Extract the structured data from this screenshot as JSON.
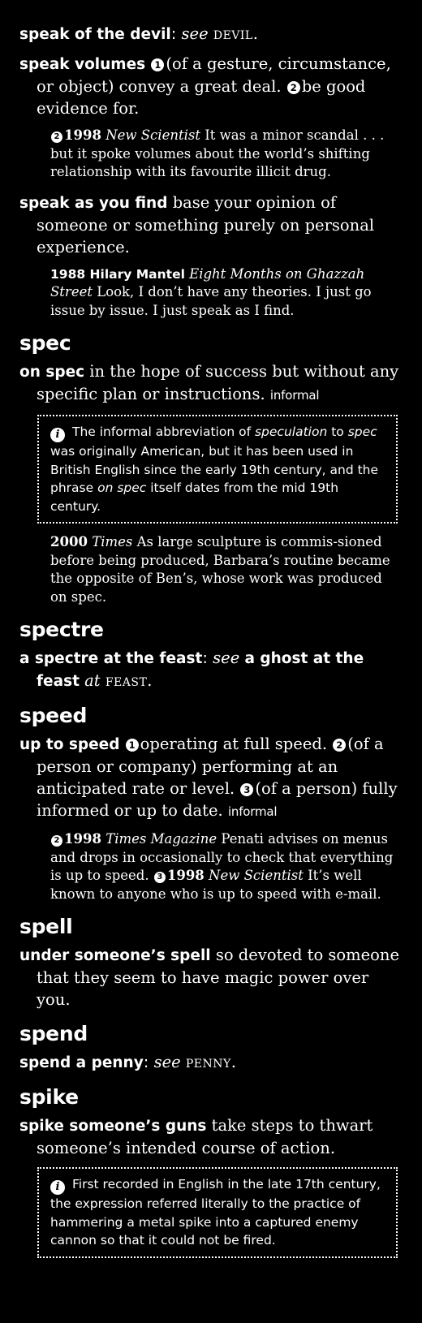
{
  "entries": {
    "devil": {
      "phrase": "speak of the devil",
      "colon": ":",
      "see": "see",
      "ref": "devil"
    },
    "volumes": {
      "phrase": "speak volumes",
      "n1": "1",
      "def1": "(of a gesture, circumstance, or object) convey a great deal.",
      "n2": "2",
      "def2": "be good evidence for.",
      "q_num": "2",
      "q_year": "1998",
      "q_src": "New Scientist",
      "q_text": "It was a minor scandal . . . but it spoke volumes about the world’s shifting relationship with its favourite illicit drug."
    },
    "find": {
      "phrase": "speak as you find",
      "def": "base your opinion of someone or something purely on personal experience.",
      "q_author": "1988 Hilary Mantel",
      "q_src": "Eight Months on Ghazzah Street",
      "q_text": "Look, I don’t have any theories. I just go issue by issue. I just speak as I find."
    },
    "spec": {
      "headword": "spec",
      "phrase": "on spec",
      "def": "in the hope of success but without any specific plan or instructions.",
      "register": "informal",
      "note_a": "The informal abbreviation of",
      "note_b": "speculation",
      "note_c": "to",
      "note_d": "spec",
      "note_e": "was originally American, but it has been used in British English since the early 19th century, and the phrase",
      "note_f": "on spec",
      "note_g": "itself dates from the mid 19th century.",
      "q_year": "2000",
      "q_src": "Times",
      "q_text": "As large sculpture is commis-sioned before being produced, Barbara’s routine became the opposite of Ben’s, whose work was produced on spec."
    },
    "spectre": {
      "headword": "spectre",
      "phrase": "a spectre at the feast",
      "colon": ":",
      "see": "see",
      "ref_phrase": "a ghost at the feast",
      "at": "at",
      "ref": "feast"
    },
    "speed": {
      "headword": "speed",
      "phrase": "up to speed",
      "n1": "1",
      "def1": "operating at full speed.",
      "n2": "2",
      "def2": "(of a person or company) performing at an anticipated rate or level.",
      "n3": "3",
      "def3": "(of a person) fully informed or up to date.",
      "register": "informal",
      "q1_num": "2",
      "q1_year": "1998",
      "q1_src": "Times Magazine",
      "q1_text": "Penati advises on menus and drops in occasionally to check that everything is up to speed.",
      "q2_num": "3",
      "q2_year": "1998",
      "q2_src": "New Scientist",
      "q2_text": "It’s well known to anyone who is up to speed with e-mail."
    },
    "spell": {
      "headword": "spell",
      "phrase": "under someone’s spell",
      "def": "so devoted to someone that they seem to have magic power over you."
    },
    "spend": {
      "headword": "spend",
      "phrase": "spend a penny",
      "colon": ":",
      "see": "see",
      "ref": "penny"
    },
    "spike": {
      "headword": "spike",
      "phrase": "spike someone’s guns",
      "def": "take steps to thwart someone’s intended course of action.",
      "note": "First recorded in English in the late 17th century, the expression referred literally to the practice of hammering a metal spike into a captured enemy cannon so that it could not be fired."
    }
  },
  "icons": {
    "info_glyph": "i"
  }
}
